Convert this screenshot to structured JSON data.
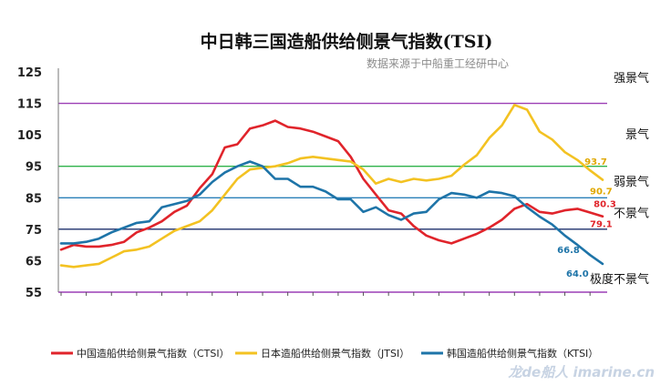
{
  "chart_data": {
    "type": "line",
    "title": "中日韩三国造船供给侧景气指数(TSI)",
    "subtitle": "数据来源于中船重工经研中心",
    "ylim": [
      55,
      125
    ],
    "yticks": [
      55,
      65,
      75,
      85,
      95,
      105,
      115,
      125
    ],
    "grid": false,
    "legend_position": "bottom",
    "thresholds": [
      {
        "value": 115,
        "color": "#9b3fb5"
      },
      {
        "value": 95,
        "color": "#2fb34a"
      },
      {
        "value": 85,
        "color": "#2a7fb8"
      },
      {
        "value": 75,
        "color": "#1c2f6b"
      },
      {
        "value": 55,
        "color": "#9b3fb5"
      }
    ],
    "zone_labels": [
      {
        "text": "强景气",
        "value": 123
      },
      {
        "text": "景气",
        "value": 105
      },
      {
        "text": "弱景气",
        "value": 90
      },
      {
        "text": "不景气",
        "value": 80
      },
      {
        "text": "极度不景气",
        "value": 59
      }
    ],
    "series": [
      {
        "name": "中国造船供给侧景气指数（CTSI）",
        "color": "#e0242b",
        "values": [
          68.5,
          70,
          69.5,
          69.5,
          70,
          71,
          74,
          75.5,
          77.5,
          80.5,
          82.5,
          88,
          92.5,
          101,
          102,
          107,
          108,
          109.5,
          107.5,
          107,
          106,
          104.5,
          103,
          98,
          91,
          86,
          81,
          80,
          76,
          73,
          71.5,
          70.5,
          72,
          73.5,
          75.5,
          78,
          81.5,
          83,
          80.5,
          80,
          81,
          81.5,
          80.3,
          79.1
        ]
      },
      {
        "name": "日本造船供给侧景气指数（JTSI）",
        "color": "#f3c222",
        "values": [
          63.5,
          63,
          63.5,
          64,
          66,
          68,
          68.5,
          69.5,
          72,
          74.5,
          76,
          77.5,
          81,
          86,
          91,
          94,
          94.5,
          95,
          96,
          97.5,
          98,
          97.5,
          97,
          96.5,
          94,
          89.5,
          91,
          90,
          91,
          90.5,
          91,
          92,
          95.5,
          98.5,
          104,
          108,
          114.5,
          113,
          106,
          103.5,
          99.5,
          97,
          93.7,
          90.7
        ]
      },
      {
        "name": "韩国造船供给侧景气指数（KTSI）",
        "color": "#1e74a8",
        "values": [
          70.5,
          70.5,
          71,
          72,
          74,
          75.5,
          77,
          77.5,
          82,
          83,
          84,
          86,
          90,
          93,
          95,
          96.5,
          95,
          91,
          91,
          88.5,
          88.5,
          87,
          84.5,
          84.5,
          80.5,
          82,
          79.5,
          78,
          80,
          80.5,
          84.5,
          86.5,
          86,
          85,
          87,
          86.5,
          85.5,
          82,
          79,
          76.5,
          73,
          70,
          66.8,
          64.0
        ]
      }
    ],
    "annotations": [
      {
        "text": "93.7",
        "series": 1,
        "index": 42,
        "dx": -6,
        "dy": -6,
        "color": "#e0a800"
      },
      {
        "text": "90.7",
        "series": 1,
        "index": 43,
        "dx": -14,
        "dy": 16,
        "color": "#e0a800"
      },
      {
        "text": "80.3",
        "series": 0,
        "index": 42,
        "dx": 4,
        "dy": -6,
        "color": "#e0242b"
      },
      {
        "text": "79.1",
        "series": 0,
        "index": 43,
        "dx": -14,
        "dy": 12,
        "color": "#e0242b"
      },
      {
        "text": "66.8",
        "series": 2,
        "index": 42,
        "dx": -36,
        "dy": -2,
        "color": "#1e74a8"
      },
      {
        "text": "64.0",
        "series": 2,
        "index": 43,
        "dx": -40,
        "dy": 14,
        "color": "#1e74a8"
      }
    ]
  },
  "watermark": "龙de船人 imarine.cn"
}
